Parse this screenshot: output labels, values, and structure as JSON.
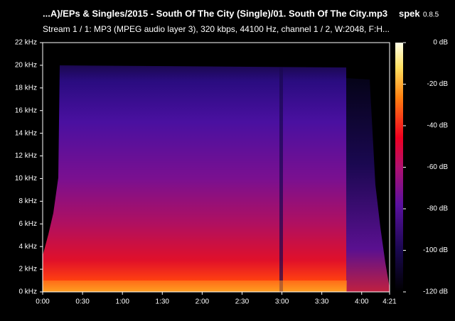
{
  "header": {
    "title": "...A)/EPs & Singles/2015 - South Of The City (Single)/01. South Of The City.mp3",
    "app": "spek",
    "version": "0.8.5",
    "stream": "Stream 1 / 1: MP3 (MPEG audio layer 3), 320 kbps, 44100 Hz, channel 1 / 2, W:2048, F:H..."
  },
  "frequency_axis": {
    "ticks": [
      "0 kHz",
      "2 kHz",
      "4 kHz",
      "6 kHz",
      "8 kHz",
      "10 kHz",
      "12 kHz",
      "14 kHz",
      "16 kHz",
      "18 kHz",
      "20 kHz",
      "22 kHz"
    ]
  },
  "time_axis": {
    "ticks": [
      "0:00",
      "0:30",
      "1:00",
      "1:30",
      "2:00",
      "2:30",
      "3:00",
      "3:30",
      "4:00",
      "4:21"
    ]
  },
  "level_scale": {
    "ticks": [
      "0 dB",
      "-20 dB",
      "-40 dB",
      "-60 dB",
      "-80 dB",
      "-100 dB",
      "-120 dB"
    ]
  }
}
